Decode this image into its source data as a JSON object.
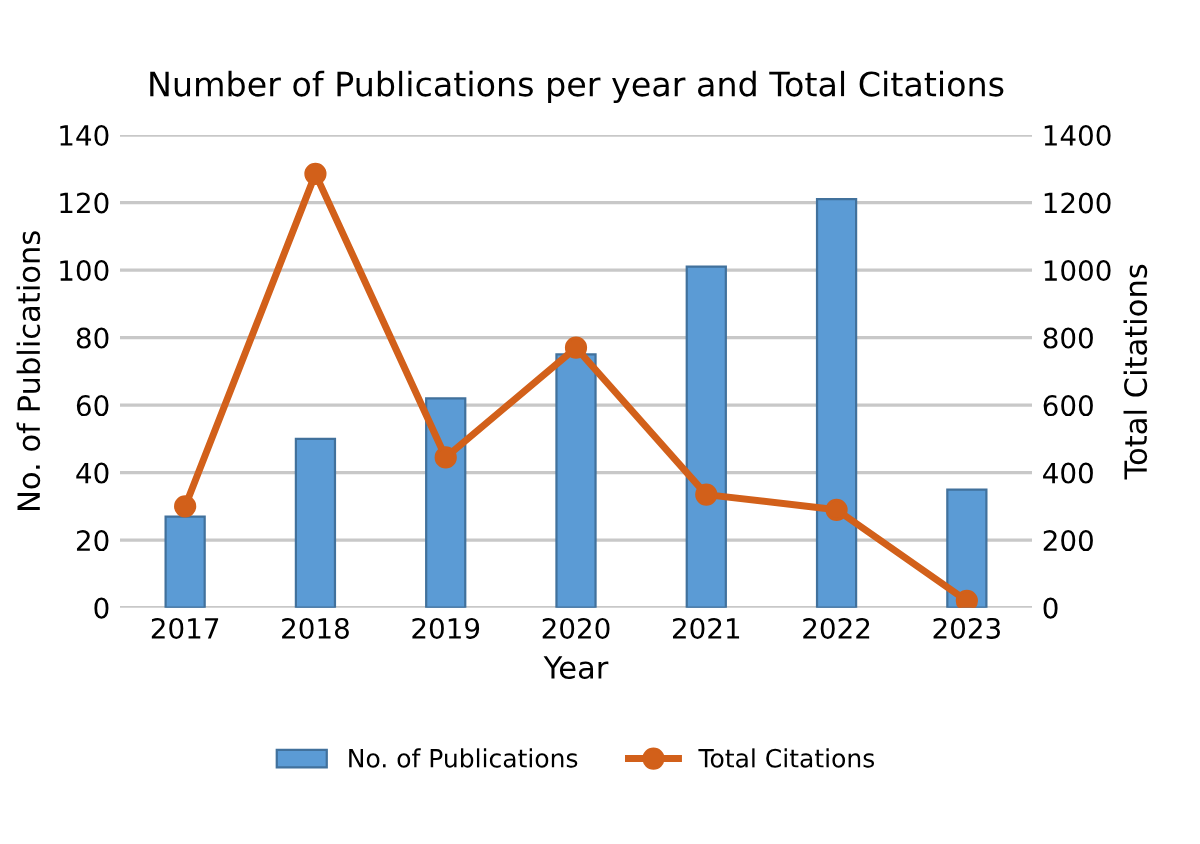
{
  "chart_data": {
    "type": "bar",
    "title": "Number of Publications per year and Total Citations",
    "xlabel": "Year",
    "ylabel": "No. of Publications",
    "y2label": "Total Citations",
    "categories": [
      "2017",
      "2018",
      "2019",
      "2020",
      "2021",
      "2022",
      "2023"
    ],
    "series": [
      {
        "name": "No. of Publications",
        "color": "#5b9bd5",
        "values": [
          27,
          50,
          62,
          75,
          101,
          121,
          35
        ]
      },
      {
        "name": "Total Citations",
        "type": "line",
        "axis": "y2",
        "color": "#d2601a",
        "marker": "circle",
        "values": [
          300,
          1285,
          445,
          770,
          335,
          290,
          20
        ]
      }
    ],
    "ylim": [
      0,
      140
    ],
    "yticks": [
      0,
      20,
      40,
      60,
      80,
      100,
      120,
      140
    ],
    "y2lim": [
      0,
      1400
    ],
    "y2ticks": [
      0,
      200,
      400,
      600,
      800,
      1000,
      1200,
      1400
    ],
    "grid": "y",
    "legend": "bottom"
  }
}
